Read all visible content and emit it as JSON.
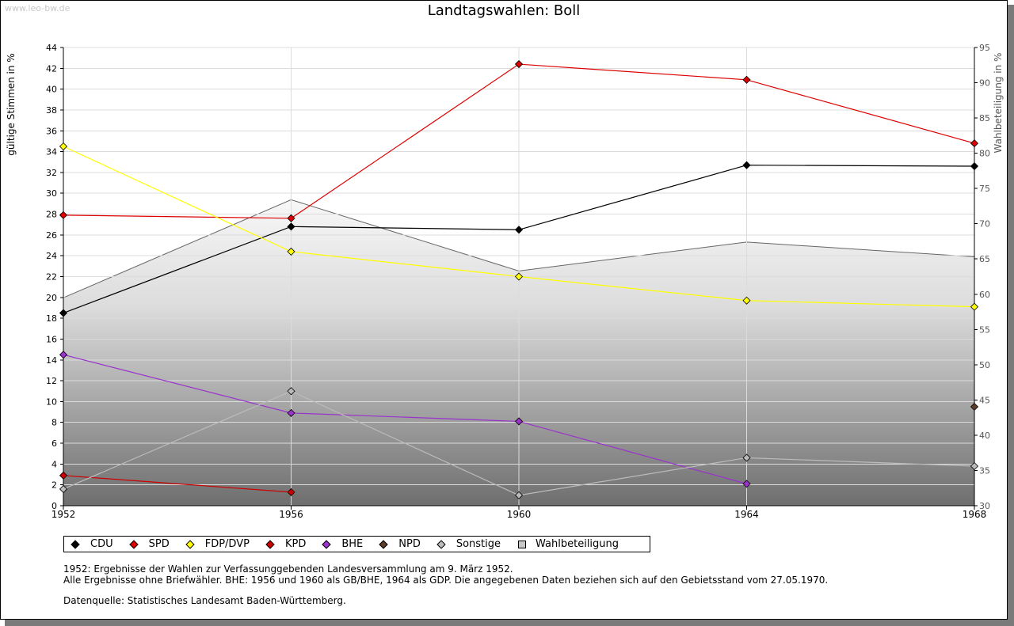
{
  "watermark": "www.leo-bw.de",
  "chart_data": {
    "type": "line",
    "title": "Landtagswahlen: Boll",
    "xlabel": "",
    "ylabel": "gültige Stimmen in %",
    "y2label": "Wahlbeteiligung in %",
    "categories": [
      "1952",
      "1956",
      "1960",
      "1964",
      "1968"
    ],
    "ylim": [
      0,
      44
    ],
    "y2lim": [
      30,
      95
    ],
    "yticks": [
      "0",
      "2",
      "4",
      "6",
      "8",
      "10",
      "12",
      "14",
      "16",
      "18",
      "20",
      "22",
      "24",
      "26",
      "28",
      "30",
      "32",
      "34",
      "36",
      "38",
      "40",
      "42",
      "44"
    ],
    "y2ticks": [
      "30",
      "35",
      "40",
      "45",
      "50",
      "55",
      "60",
      "65",
      "70",
      "75",
      "80",
      "85",
      "90",
      "95"
    ],
    "grid": true,
    "series": [
      {
        "name": "CDU",
        "color": "#000000",
        "values": [
          18.5,
          26.8,
          26.5,
          32.7,
          32.6
        ]
      },
      {
        "name": "SPD",
        "color": "#dd0000",
        "values": [
          27.9,
          27.6,
          42.4,
          40.9,
          34.8
        ]
      },
      {
        "name": "FDP/DVP",
        "color": "#ffff00",
        "values": [
          34.5,
          24.4,
          22.0,
          19.7,
          19.1
        ]
      },
      {
        "name": "KPD",
        "color": "#cc0000",
        "values": [
          2.9,
          1.3,
          null,
          null,
          null
        ]
      },
      {
        "name": "BHE",
        "color": "#9933cc",
        "values": [
          14.5,
          8.9,
          8.1,
          2.1,
          null
        ]
      },
      {
        "name": "NPD",
        "color": "#5c3c2c",
        "values": [
          null,
          null,
          null,
          null,
          9.5
        ]
      },
      {
        "name": "Sonstige",
        "color": "#bbbbbb",
        "values": [
          1.6,
          11.0,
          1.0,
          4.6,
          3.8
        ]
      }
    ],
    "turnout": {
      "name": "Wahlbeteiligung",
      "axis": "right",
      "values": [
        59.5,
        73.4,
        63.3,
        67.4,
        65.3
      ]
    }
  },
  "legend": [
    {
      "label": "CDU",
      "color": "#000000"
    },
    {
      "label": "SPD",
      "color": "#dd0000"
    },
    {
      "label": "FDP/DVP",
      "color": "#ffff00"
    },
    {
      "label": "KPD",
      "color": "#cc0000"
    },
    {
      "label": "BHE",
      "color": "#9933cc"
    },
    {
      "label": "NPD",
      "color": "#5c3c2c"
    },
    {
      "label": "Sonstige",
      "color": "#bbbbbb"
    },
    {
      "label": "Wahlbeteiligung",
      "color": "#c8c8c8"
    }
  ],
  "notes": {
    "line1": "1952: Ergebnisse der Wahlen zur Verfassunggebenden Landesversammlung am 9. März 1952.",
    "line2": "Alle Ergebnisse ohne Briefwähler. BHE: 1956 und 1960 als GB/BHE, 1964 als GDP. Die angegebenen Daten beziehen sich auf den Gebietsstand vom 27.05.1970.",
    "source": "Datenquelle: Statistisches Landesamt Baden-Württemberg."
  }
}
